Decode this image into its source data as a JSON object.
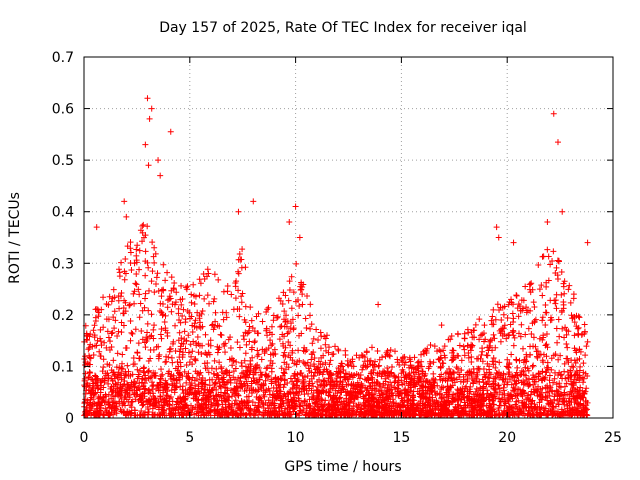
{
  "chart_data": {
    "type": "scatter",
    "title": "Day 157 of 2025, Rate Of TEC Index for receiver iqal",
    "xlabel": "GPS time / hours",
    "ylabel": "ROTI / TECUs",
    "xlim": [
      0,
      25
    ],
    "ylim": [
      0,
      0.7
    ],
    "xticks": [
      0,
      5,
      10,
      15,
      20,
      25
    ],
    "yticks": [
      0,
      0.1,
      0.2,
      0.3,
      0.4,
      0.5,
      0.6,
      0.7
    ],
    "ytick_labels": [
      "0",
      "0.1",
      "0.2",
      "0.3",
      "0.4",
      "0.5",
      "0.6",
      "0.7"
    ],
    "grid": true,
    "marker": "+",
    "series": [
      {
        "name": "ROTI",
        "color": "#ff0000",
        "envelope": {
          "x": [
            0,
            1,
            2,
            2.5,
            3,
            3.5,
            4,
            5,
            6,
            7,
            7.5,
            8,
            9,
            10,
            11,
            12,
            13,
            14,
            15,
            15.5,
            16,
            17,
            18,
            19,
            20,
            21,
            22,
            22.5,
            23,
            23.5,
            23.8
          ],
          "y": [
            0.17,
            0.24,
            0.33,
            0.35,
            0.4,
            0.32,
            0.28,
            0.26,
            0.29,
            0.25,
            0.35,
            0.22,
            0.21,
            0.3,
            0.18,
            0.13,
            0.12,
            0.14,
            0.12,
            0.11,
            0.13,
            0.15,
            0.17,
            0.2,
            0.23,
            0.27,
            0.33,
            0.3,
            0.25,
            0.22,
            0.2
          ]
        },
        "outliers": {
          "x": [
            2.9,
            3.0,
            3.1,
            3.05,
            3.2,
            3.5,
            3.6,
            4.1,
            1.9,
            2.0,
            7.3,
            8.0,
            9.7,
            10.0,
            10.2,
            0.6,
            13.9,
            16.9,
            19.5,
            19.6,
            20.3,
            21.9,
            22.2,
            22.4,
            22.6,
            23.8
          ],
          "y": [
            0.53,
            0.62,
            0.58,
            0.49,
            0.6,
            0.5,
            0.47,
            0.555,
            0.42,
            0.39,
            0.4,
            0.42,
            0.38,
            0.41,
            0.35,
            0.37,
            0.22,
            0.18,
            0.37,
            0.35,
            0.34,
            0.38,
            0.59,
            0.535,
            0.4,
            0.34
          ]
        }
      }
    ]
  }
}
